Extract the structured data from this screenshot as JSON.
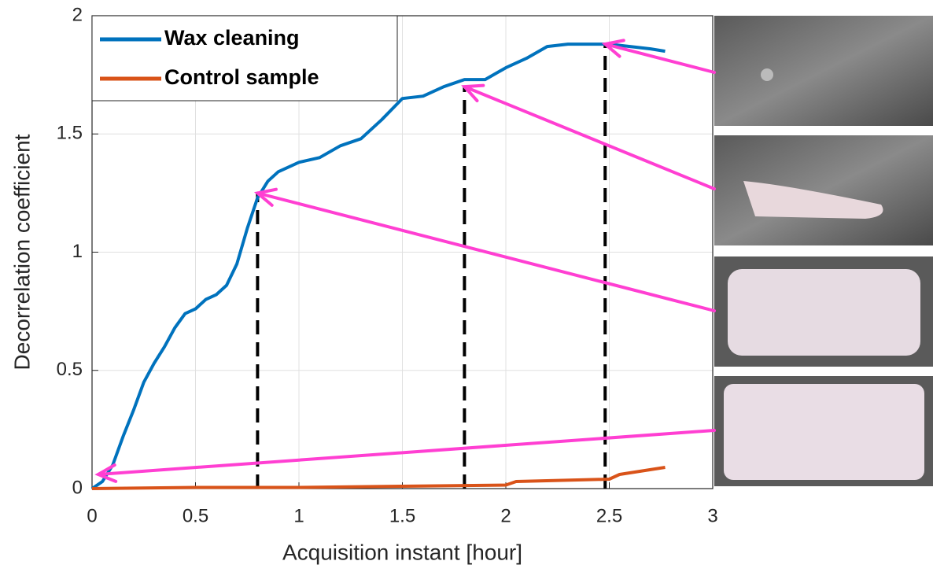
{
  "chart_data": {
    "type": "line",
    "xlabel": "Acquisition instant [hour]",
    "ylabel": "Decorrelation coefficient",
    "xlim": [
      0,
      3
    ],
    "xticks": [
      0,
      0.5,
      1,
      1.5,
      2,
      2.5,
      3
    ],
    "ylim": [
      0,
      2
    ],
    "yticks": [
      0,
      0.5,
      1,
      1.5,
      2
    ],
    "grid": true,
    "legend": "upper left",
    "series": [
      {
        "name": "Wax cleaning",
        "color": "#0072bd",
        "x": [
          0,
          0.05,
          0.1,
          0.15,
          0.2,
          0.25,
          0.3,
          0.35,
          0.4,
          0.45,
          0.5,
          0.55,
          0.6,
          0.65,
          0.7,
          0.75,
          0.8,
          0.85,
          0.9,
          0.95,
          1.0,
          1.1,
          1.2,
          1.3,
          1.4,
          1.5,
          1.6,
          1.7,
          1.8,
          1.9,
          2.0,
          2.1,
          2.2,
          2.3,
          2.4,
          2.5,
          2.6,
          2.7,
          2.77
        ],
        "values": [
          0,
          0.03,
          0.1,
          0.22,
          0.33,
          0.45,
          0.53,
          0.6,
          0.68,
          0.74,
          0.76,
          0.8,
          0.82,
          0.86,
          0.95,
          1.1,
          1.23,
          1.3,
          1.34,
          1.36,
          1.38,
          1.4,
          1.45,
          1.48,
          1.56,
          1.65,
          1.66,
          1.7,
          1.73,
          1.73,
          1.78,
          1.82,
          1.87,
          1.88,
          1.88,
          1.88,
          1.87,
          1.86,
          1.85
        ]
      },
      {
        "name": "Control sample",
        "color": "#d95319",
        "x": [
          0,
          0.5,
          1,
          1.5,
          2,
          2.05,
          2.5,
          2.55,
          2.77
        ],
        "values": [
          0,
          0.005,
          0.005,
          0.01,
          0.015,
          0.03,
          0.04,
          0.06,
          0.09
        ]
      }
    ],
    "highlight_points": [
      {
        "x": 2.48,
        "y": 1.88
      },
      {
        "x": 1.8,
        "y": 1.7
      },
      {
        "x": 0.8,
        "y": 1.25
      },
      {
        "x": 0.03,
        "y": 0.06
      }
    ]
  }
}
